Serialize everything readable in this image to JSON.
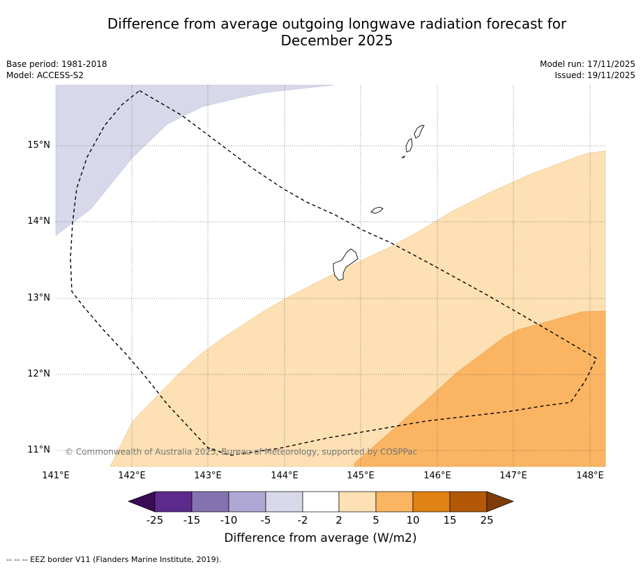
{
  "title_line1": "Difference from average outgoing longwave radiation forecast for",
  "title_line2": "December 2025",
  "meta_left": {
    "base_period": "Base period: 1981-2018",
    "model": "Model: ACCESS-S2"
  },
  "meta_right": {
    "model_run": "Model run: 17/11/2025",
    "issued": "Issued: 19/11/2025"
  },
  "lat_labels": [
    "15°N",
    "14°N",
    "13°N",
    "12°N",
    "11°N"
  ],
  "lon_labels": [
    "141°E",
    "142°E",
    "143°E",
    "144°E",
    "145°E",
    "146°E",
    "147°E",
    "148°E"
  ],
  "copyright": "© Commonwealth of Australia 2025, Bureau of Meteorology, supported by COSPPac",
  "colorbar": {
    "title": "Difference from average (W/m2)",
    "ticks": [
      "-25",
      "-15",
      "-10",
      "-5",
      "-2",
      "2",
      "5",
      "10",
      "15",
      "25"
    ],
    "colors": [
      "#3b0a57",
      "#5c2a8c",
      "#8472b0",
      "#b0a8d4",
      "#d7d8ea",
      "#ffffff",
      "#fde0b3",
      "#fbb562",
      "#e08214",
      "#b35806",
      "#7f3b08"
    ]
  },
  "footnote": "--  --  -- EEZ border V11 (Flanders Marine Institute, 2019)."
}
